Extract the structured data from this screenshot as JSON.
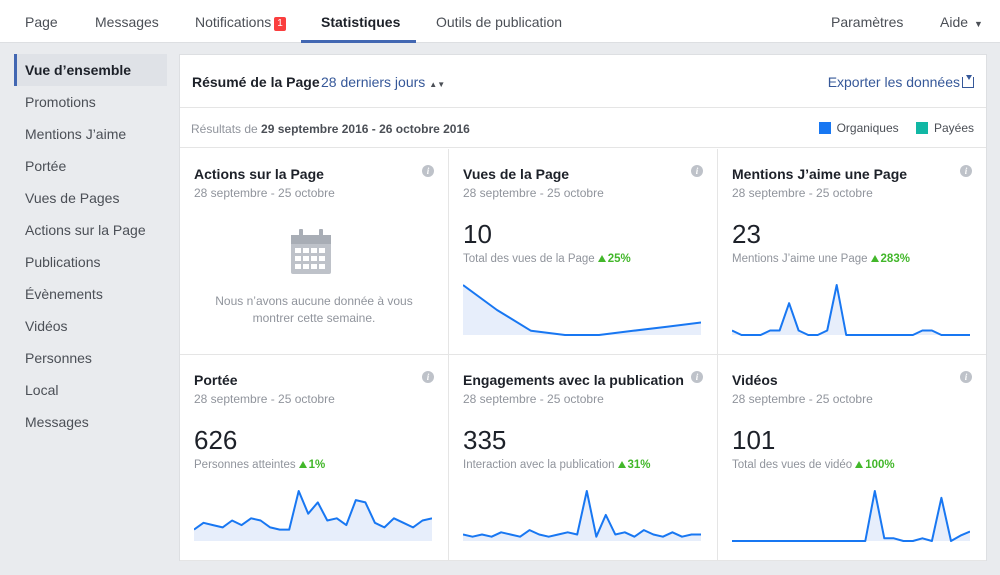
{
  "nav": {
    "page": "Page",
    "messages": "Messages",
    "notifications": "Notifications",
    "notifications_count": "1",
    "insights": "Statistiques",
    "publishing_tools": "Outils de publication",
    "settings": "Paramètres",
    "help": "Aide"
  },
  "sidebar": {
    "items": [
      {
        "label": "Vue d’ensemble"
      },
      {
        "label": "Promotions"
      },
      {
        "label": "Mentions J’aime"
      },
      {
        "label": "Portée"
      },
      {
        "label": "Vues de Pages"
      },
      {
        "label": "Actions sur la Page"
      },
      {
        "label": "Publications"
      },
      {
        "label": "Évènements"
      },
      {
        "label": "Vidéos"
      },
      {
        "label": "Personnes"
      },
      {
        "label": "Local"
      },
      {
        "label": "Messages"
      }
    ]
  },
  "summary": {
    "title": "Résumé de la Page",
    "period": "28 derniers jours",
    "export": "Exporter les données",
    "results_prefix": "Résultats de",
    "results_range": "29 septembre 2016 - 26 octobre 2016",
    "legend": [
      {
        "label": "Organiques",
        "color": "#1877f2"
      },
      {
        "label": "Payées",
        "color": "#11b7a4"
      }
    ]
  },
  "cards": [
    {
      "title": "Actions sur la Page",
      "date": "28 septembre - 25 octobre",
      "empty_message": "Nous n’avons aucune donnée à vous montrer cette semaine.",
      "icon": "calendar-icon"
    },
    {
      "title": "Vues de la Page",
      "date": "28 septembre - 25 octobre",
      "value": "10",
      "subtitle": "Total des vues de la Page",
      "change": "25%",
      "series": [
        6,
        3,
        0.5,
        0,
        0,
        0.5,
        1,
        1.5
      ]
    },
    {
      "title": "Mentions J’aime une Page",
      "date": "28 septembre - 25 octobre",
      "value": "23",
      "subtitle": "Mentions J’aime une Page",
      "change": "283%",
      "series": [
        1,
        0,
        0,
        0,
        1,
        1,
        7,
        1,
        0,
        0,
        1,
        11,
        0,
        0,
        0,
        0,
        0,
        0,
        0,
        0,
        1,
        1,
        0,
        0,
        0,
        0
      ]
    },
    {
      "title": "Portée",
      "date": "28 septembre - 25 octobre",
      "value": "626",
      "subtitle": "Personnes atteintes",
      "change": "1%",
      "series": [
        5,
        8,
        7,
        6,
        9,
        7,
        10,
        9,
        6,
        5,
        5,
        22,
        12,
        17,
        9,
        10,
        7,
        18,
        17,
        8,
        6,
        10,
        8,
        6,
        9,
        10
      ]
    },
    {
      "title": "Engagements avec la publication",
      "date": "28 septembre - 25 octobre",
      "value": "335",
      "subtitle": "Interaction avec la publication",
      "change": "31%",
      "series": [
        3,
        2,
        3,
        2,
        4,
        3,
        2,
        5,
        3,
        2,
        3,
        4,
        3,
        23,
        2,
        12,
        3,
        4,
        2,
        5,
        3,
        2,
        4,
        2,
        3,
        3
      ]
    },
    {
      "title": "Vidéos",
      "date": "28 septembre - 25 octobre",
      "value": "101",
      "subtitle": "Total des vues de vidéo",
      "change": "100%",
      "series": [
        0,
        0,
        0,
        0,
        0,
        0,
        0,
        0,
        0,
        0,
        0,
        0,
        0,
        0,
        0,
        37,
        2,
        2,
        0,
        0,
        2,
        0,
        32,
        0,
        4,
        7
      ]
    }
  ]
}
